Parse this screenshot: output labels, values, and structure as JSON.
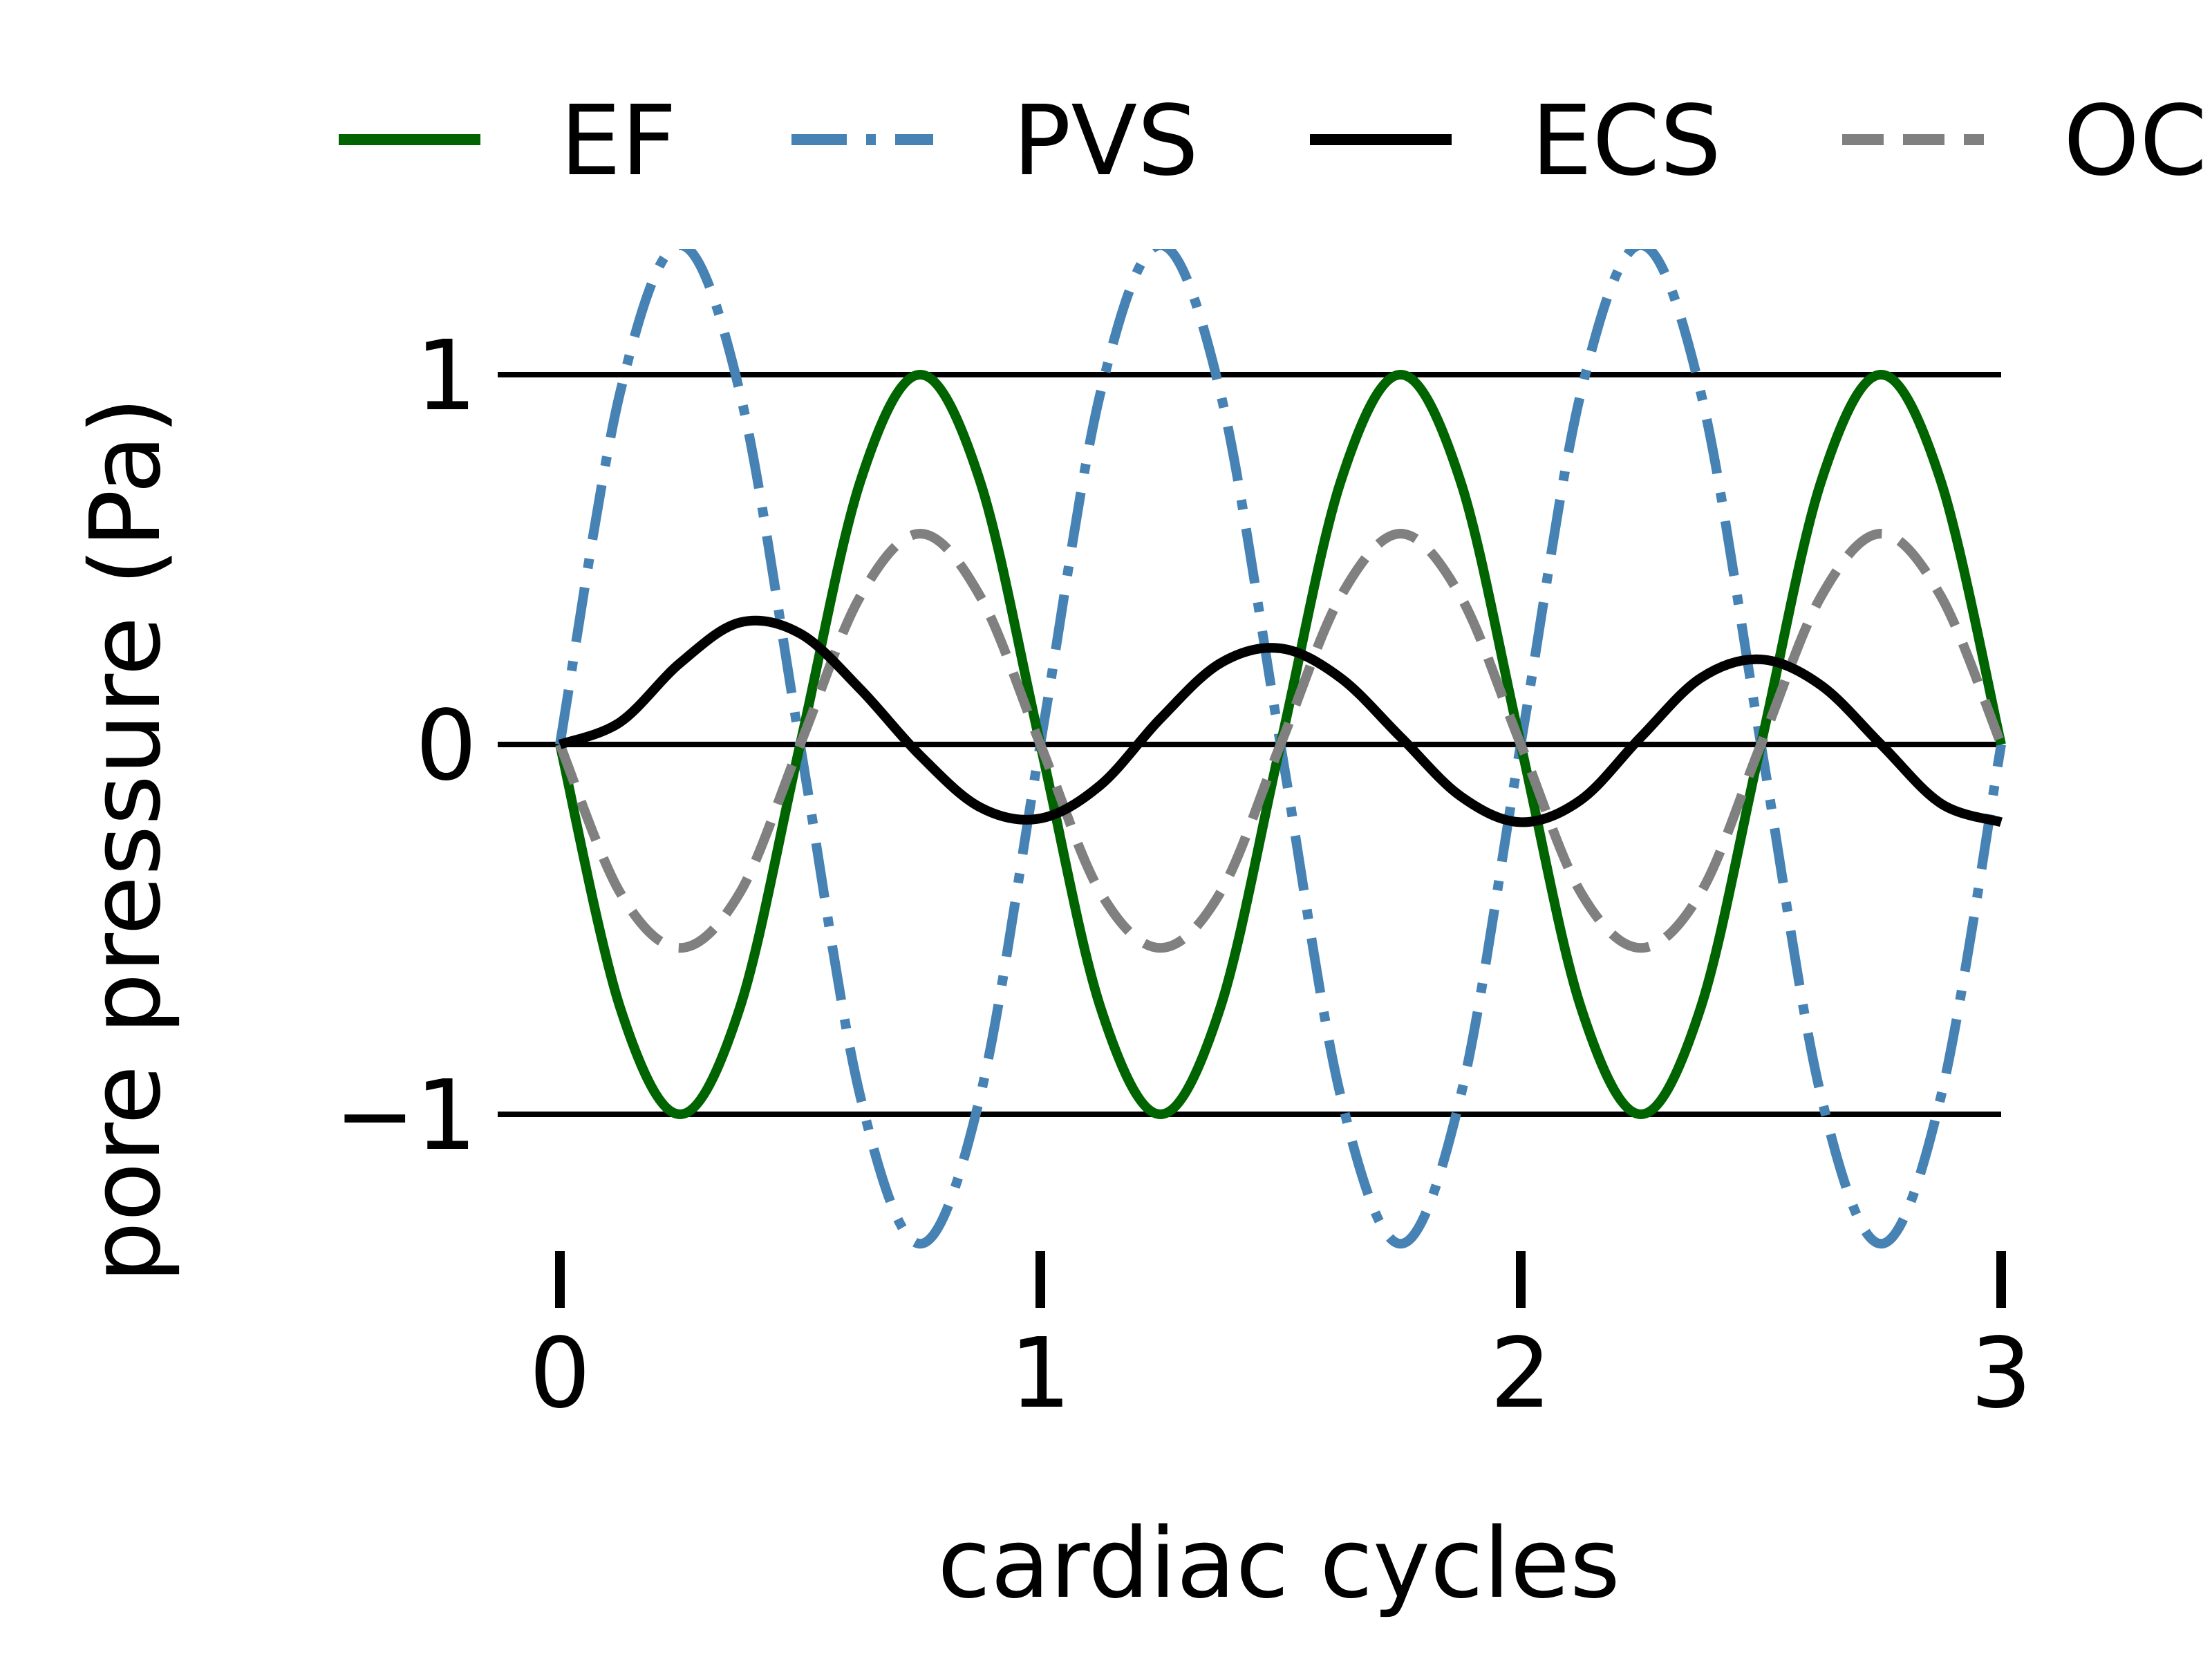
{
  "chart_data": {
    "type": "line",
    "xlabel": "cardiac cycles",
    "ylabel": "pore pressure (Pa)",
    "xlim": [
      0,
      3
    ],
    "ylim": [
      -1.35,
      1.35
    ],
    "xticks": [
      0,
      1,
      2,
      3
    ],
    "xtick_labels": [
      "0",
      "1",
      "2",
      "3"
    ],
    "yticks": [
      -1,
      0,
      1
    ],
    "ytick_labels": [
      "−1",
      "0",
      "1"
    ],
    "reference_lines": [
      -1,
      0,
      1
    ],
    "grid": false,
    "legend_position": "top",
    "series": [
      {
        "name": "EF",
        "color": "#006400",
        "dash": "solid",
        "x": [
          0,
          0.125,
          0.25,
          0.375,
          0.5,
          0.625,
          0.75,
          0.875,
          1,
          1.125,
          1.25,
          1.375,
          1.5,
          1.625,
          1.75,
          1.875,
          2,
          2.125,
          2.25,
          2.375,
          2.5,
          2.625,
          2.75,
          2.875,
          3
        ],
        "y": [
          0,
          -0.71,
          -1,
          -0.71,
          0,
          0.71,
          1,
          0.71,
          0,
          -0.71,
          -1,
          -0.71,
          0,
          0.71,
          1,
          0.71,
          0,
          -0.71,
          -1,
          -0.71,
          0,
          0.71,
          1,
          0.71,
          0
        ]
      },
      {
        "name": "PVS",
        "color": "#4682b4",
        "dash": "dashdot",
        "x": [
          0,
          0.125,
          0.25,
          0.375,
          0.5,
          0.625,
          0.75,
          0.875,
          1,
          1.125,
          1.25,
          1.375,
          1.5,
          1.625,
          1.75,
          1.875,
          2,
          2.125,
          2.25,
          2.375,
          2.5,
          2.625,
          2.75,
          2.875,
          3
        ],
        "y": [
          0,
          0.95,
          1.35,
          0.95,
          0,
          -0.95,
          -1.35,
          -0.95,
          0,
          0.95,
          1.35,
          0.95,
          0,
          -0.95,
          -1.35,
          -0.95,
          0,
          0.95,
          1.35,
          0.95,
          0,
          -0.95,
          -1.35,
          -0.95,
          0
        ]
      },
      {
        "name": "ECS",
        "color": "#000000",
        "dash": "solid",
        "x": [
          0,
          0.125,
          0.25,
          0.375,
          0.5,
          0.625,
          0.75,
          0.875,
          1,
          1.125,
          1.25,
          1.375,
          1.5,
          1.625,
          1.75,
          1.875,
          2,
          2.125,
          2.25,
          2.375,
          2.5,
          2.625,
          2.75,
          2.875,
          3
        ],
        "y": [
          0,
          0.06,
          0.22,
          0.33,
          0.3,
          0.15,
          -0.03,
          -0.17,
          -0.2,
          -0.11,
          0.07,
          0.22,
          0.26,
          0.18,
          0.02,
          -0.14,
          -0.21,
          -0.15,
          0.02,
          0.18,
          0.23,
          0.16,
          0,
          -0.16,
          -0.21
        ]
      },
      {
        "name": "OC",
        "color": "#808080",
        "dash": "dashed",
        "x": [
          0,
          0.125,
          0.25,
          0.375,
          0.5,
          0.625,
          0.75,
          0.875,
          1,
          1.125,
          1.25,
          1.375,
          1.5,
          1.625,
          1.75,
          1.875,
          2,
          2.125,
          2.25,
          2.375,
          2.5,
          2.625,
          2.75,
          2.875,
          3
        ],
        "y": [
          0,
          -0.4,
          -0.55,
          -0.4,
          0,
          0.4,
          0.57,
          0.4,
          0,
          -0.4,
          -0.55,
          -0.4,
          0,
          0.4,
          0.57,
          0.4,
          0,
          -0.4,
          -0.55,
          -0.4,
          0,
          0.4,
          0.57,
          0.4,
          0
        ]
      }
    ]
  }
}
